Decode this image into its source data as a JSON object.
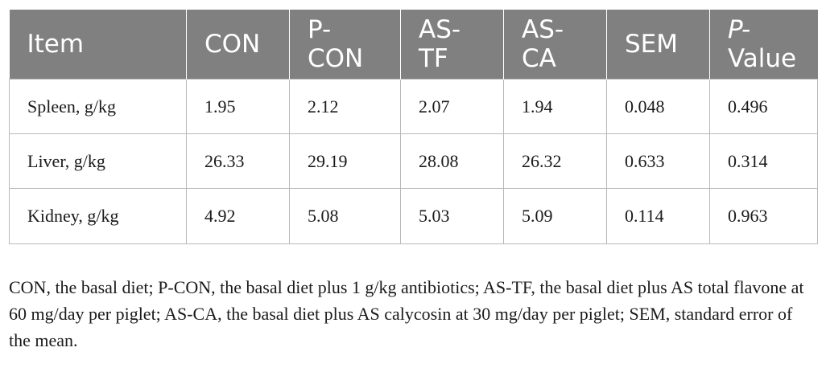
{
  "table": {
    "headers": [
      {
        "lines": [
          "Item"
        ]
      },
      {
        "lines": [
          "CON"
        ]
      },
      {
        "lines": [
          "P-",
          "CON"
        ]
      },
      {
        "lines": [
          "AS-",
          "TF"
        ]
      },
      {
        "lines": [
          "AS-",
          "CA"
        ]
      },
      {
        "lines": [
          "SEM"
        ]
      },
      {
        "lines": [
          "P-",
          "Value"
        ],
        "italic_first": true
      }
    ],
    "rows": [
      [
        "Spleen, g/kg",
        "1.95",
        "2.12",
        "2.07",
        "1.94",
        "0.048",
        "0.496"
      ],
      [
        "Liver, g/kg",
        "26.33",
        "29.19",
        "28.08",
        "26.32",
        "0.633",
        "0.314"
      ],
      [
        "Kidney, g/kg",
        "4.92",
        "5.08",
        "5.03",
        "5.09",
        "0.114",
        "0.963"
      ]
    ]
  },
  "footnote": "CON, the basal diet; P-CON, the basal diet plus 1 g/kg antibiotics; AS-TF, the basal diet plus AS total flavone at 60 mg/day per piglet; AS-CA, the basal diet plus AS calycosin at 30 mg/day per piglet; SEM, standard error of the mean.",
  "colors": {
    "header_bg": "#808080",
    "header_text": "#ffffff",
    "border": "#b9b9b9"
  }
}
